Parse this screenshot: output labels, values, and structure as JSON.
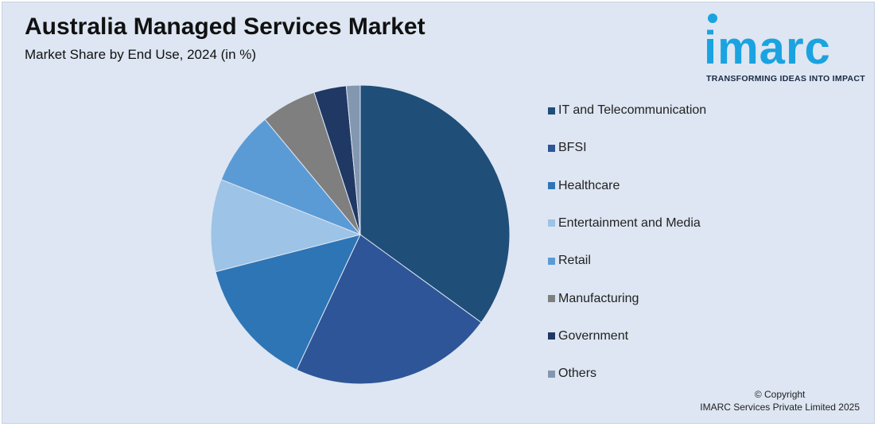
{
  "header": {
    "title": "Australia Managed Services Market",
    "subtitle": "Market Share by End Use, 2024 (in %)"
  },
  "logo": {
    "word": "imarc",
    "tagline": "TRANSFORMING IDEAS INTO IMPACT",
    "color": "#1aa3e0"
  },
  "chart_data": {
    "type": "pie",
    "start_angle_deg": 0,
    "direction": "clockwise",
    "slices": [
      {
        "label": "IT and Telecommunication",
        "value": 35,
        "color": "#1f4e79"
      },
      {
        "label": "BFSI",
        "value": 22,
        "color": "#2e5597"
      },
      {
        "label": "Healthcare",
        "value": 14,
        "color": "#2e75b6"
      },
      {
        "label": "Entertainment and Media",
        "value": 10,
        "color": "#9dc3e6"
      },
      {
        "label": "Retail",
        "value": 8,
        "color": "#5b9bd5"
      },
      {
        "label": "Manufacturing",
        "value": 6,
        "color": "#7f7f7f"
      },
      {
        "label": "Government",
        "value": 3.5,
        "color": "#203864"
      },
      {
        "label": "Others",
        "value": 1.5,
        "color": "#8497b0"
      }
    ]
  },
  "footer": {
    "line1": "© Copyright",
    "line2": "IMARC Services Private Limited 2025"
  }
}
